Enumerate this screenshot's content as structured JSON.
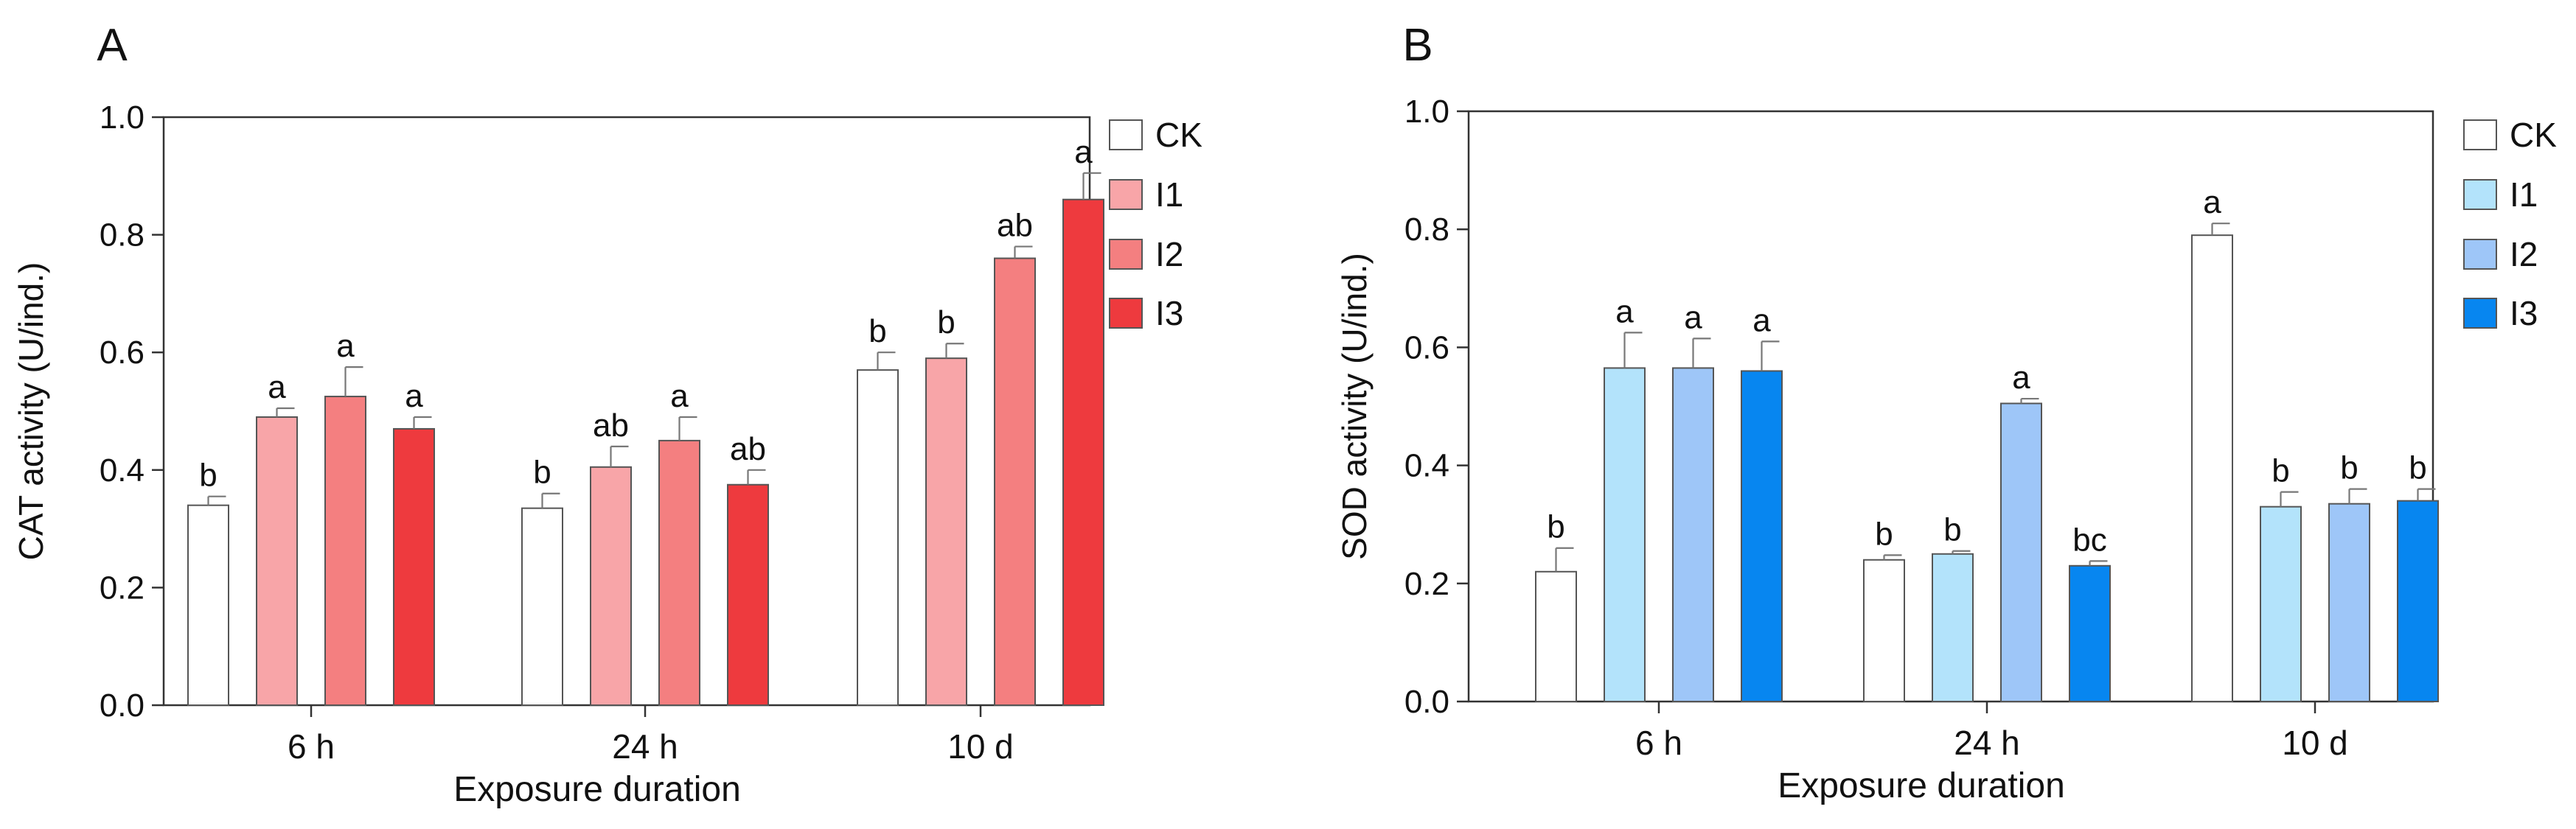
{
  "chart_data": [
    {
      "type": "bar",
      "panel_label": "A",
      "title": "",
      "xlabel": "Exposure duration",
      "ylabel": "CAT activity (U/ind.)",
      "ylim": [
        0,
        1.0
      ],
      "yticks": [
        "0.0",
        "0.2",
        "0.4",
        "0.6",
        "0.8",
        "1.0"
      ],
      "categories": [
        "6 h",
        "24 h",
        "10 d"
      ],
      "legend": {
        "position": "right",
        "entries": [
          "CK",
          "I1",
          "I2",
          "I3"
        ]
      },
      "series": [
        {
          "name": "CK",
          "color": "#ffffff",
          "values": [
            0.34,
            0.335,
            0.57
          ],
          "errors": [
            0.015,
            0.025,
            0.03
          ],
          "letters": [
            "b",
            "b",
            "b"
          ]
        },
        {
          "name": "I1",
          "color": "#f8a5a8",
          "values": [
            0.49,
            0.405,
            0.59
          ],
          "errors": [
            0.015,
            0.035,
            0.025
          ],
          "letters": [
            "a",
            "ab",
            "b"
          ]
        },
        {
          "name": "I2",
          "color": "#f47f80",
          "values": [
            0.525,
            0.45,
            0.76
          ],
          "errors": [
            0.05,
            0.04,
            0.02
          ],
          "letters": [
            "a",
            "a",
            "ab"
          ]
        },
        {
          "name": "I3",
          "color": "#ee3a3e",
          "values": [
            0.47,
            0.375,
            0.86
          ],
          "errors": [
            0.02,
            0.025,
            0.045
          ],
          "letters": [
            "a",
            "ab",
            "a"
          ]
        }
      ]
    },
    {
      "type": "bar",
      "panel_label": "B",
      "title": "",
      "xlabel": "Exposure duration",
      "ylabel": "SOD activity (U/ind.)",
      "ylim": [
        0,
        1.0
      ],
      "yticks": [
        "0.0",
        "0.2",
        "0.4",
        "0.6",
        "0.8",
        "1.0"
      ],
      "categories": [
        "6 h",
        "24 h",
        "10 d"
      ],
      "legend": {
        "position": "right",
        "entries": [
          "CK",
          "I1",
          "I2",
          "I3"
        ]
      },
      "series": [
        {
          "name": "CK",
          "color": "#ffffff",
          "values": [
            0.22,
            0.24,
            0.79
          ],
          "errors": [
            0.04,
            0.008,
            0.02
          ],
          "letters": [
            "b",
            "b",
            "a"
          ]
        },
        {
          "name": "I1",
          "color": "#b3e3fb",
          "values": [
            0.565,
            0.25,
            0.33
          ],
          "errors": [
            0.06,
            0.005,
            0.025
          ],
          "letters": [
            "a",
            "b",
            "b"
          ]
        },
        {
          "name": "I2",
          "color": "#9ec6f8",
          "values": [
            0.565,
            0.505,
            0.335
          ],
          "errors": [
            0.05,
            0.008,
            0.025
          ],
          "letters": [
            "a",
            "a",
            "b"
          ]
        },
        {
          "name": "I3",
          "color": "#0786f0",
          "values": [
            0.56,
            0.23,
            0.34
          ],
          "errors": [
            0.05,
            0.008,
            0.02
          ],
          "letters": [
            "a",
            "bc",
            "b"
          ]
        }
      ]
    }
  ]
}
